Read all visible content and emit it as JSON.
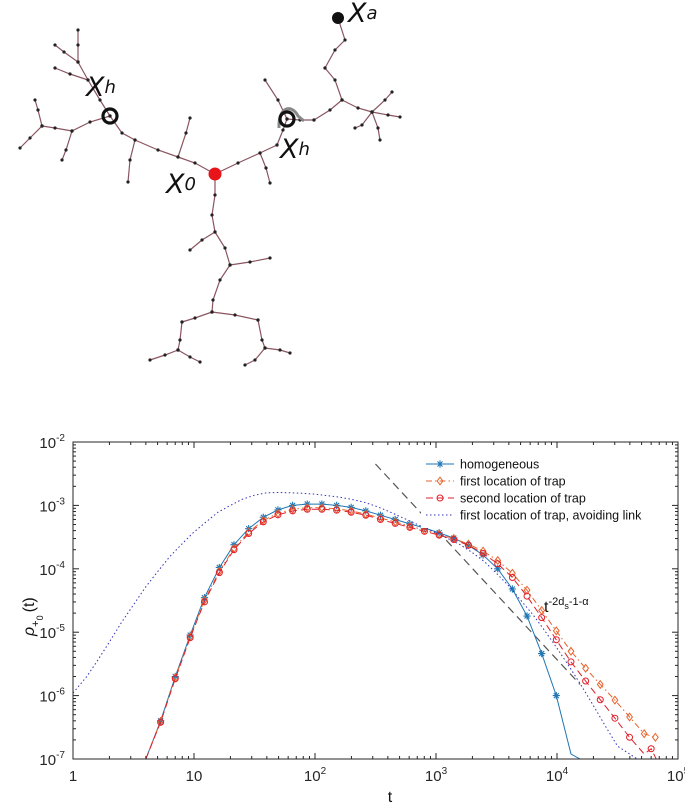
{
  "tree": {
    "labels": {
      "x_a": "X",
      "x_a_sub": "a",
      "x_h": "X",
      "x_h_sub": "h",
      "x_0": "X",
      "x_0_sub": "0"
    },
    "colors": {
      "edge": "#8a5560",
      "node": "#222222",
      "origin": "#e8141a",
      "target": "#111111",
      "trap_ring": "#111111",
      "avoid_arc": "#888888"
    }
  },
  "chart_data": {
    "type": "line",
    "x_scale": "log",
    "y_scale": "log",
    "xlim": [
      1,
      100000
    ],
    "ylim": [
      1e-07,
      0.01
    ],
    "x_ticks": [
      {
        "value": 1,
        "base": "1",
        "exp": ""
      },
      {
        "value": 10,
        "base": "10",
        "exp": ""
      },
      {
        "value": 100,
        "base": "10",
        "exp": "2"
      },
      {
        "value": 1000,
        "base": "10",
        "exp": "3"
      },
      {
        "value": 10000,
        "base": "10",
        "exp": "4"
      },
      {
        "value": 100000,
        "base": "10",
        "exp": "5"
      }
    ],
    "y_ticks": [
      {
        "value": 1e-07,
        "base": "10",
        "exp": "-7"
      },
      {
        "value": 1e-06,
        "base": "10",
        "exp": "-6"
      },
      {
        "value": 1e-05,
        "base": "10",
        "exp": "-5"
      },
      {
        "value": 0.0001,
        "base": "10",
        "exp": "-4"
      },
      {
        "value": 0.001,
        "base": "10",
        "exp": "-3"
      },
      {
        "value": 0.01,
        "base": "10",
        "exp": "-2"
      }
    ],
    "xlabel": "t",
    "ylabel": {
      "rho": "ρ",
      "sub": "+",
      "subsub": "0",
      "tail": "(t)"
    },
    "grid": false,
    "legend_position": "top-right",
    "annotation": {
      "base": "t",
      "exp": "-2d",
      "exp_sub": "s",
      "exp_tail": "-1-α"
    },
    "series": [
      {
        "name": "homogeneous",
        "color": "#1f77b4",
        "dash": "",
        "marker": "star",
        "x": [
          4,
          5.3,
          7.0,
          9.3,
          12.2,
          16.2,
          21.4,
          28.3,
          37.4,
          49.4,
          65.3,
          86.3,
          114,
          151,
          199,
          263,
          348,
          460,
          608,
          803,
          1062,
          1403,
          1854,
          2450,
          3237,
          4278,
          5653,
          7469,
          9870,
          13043,
          15500
        ],
        "y": [
          1e-07,
          4e-07,
          2e-06,
          9e-06,
          3.5e-05,
          0.000105,
          0.00024,
          0.00043,
          0.00065,
          0.00085,
          0.001,
          0.00105,
          0.00105,
          0.001,
          0.00093,
          0.00082,
          0.0007,
          0.0006,
          0.00051,
          0.00044,
          0.00037,
          0.000305,
          0.000235,
          0.000165,
          0.0001,
          4.8e-05,
          1.8e-05,
          4.6e-06,
          1e-06,
          1.2e-07,
          1e-07
        ],
        "marker_x": [
          5.3,
          7.0,
          9.3,
          12.2,
          16.2,
          21.4,
          28.3,
          37.4,
          49.4,
          65.3,
          86.3,
          114,
          151,
          199,
          263,
          348,
          460,
          608,
          803,
          1062,
          1403,
          1854,
          2450,
          3237,
          4278,
          5653,
          7469,
          9870
        ],
        "marker_y": [
          4e-07,
          2e-06,
          9e-06,
          3.5e-05,
          0.000105,
          0.00024,
          0.00043,
          0.00065,
          0.00085,
          0.001,
          0.00105,
          0.00105,
          0.001,
          0.00093,
          0.00082,
          0.0007,
          0.0006,
          0.00051,
          0.00044,
          0.00037,
          0.000305,
          0.000235,
          0.000165,
          0.0001,
          4.8e-05,
          1.8e-05,
          4.6e-06,
          1e-06
        ]
      },
      {
        "name": "first location of trap",
        "color": "#e8622a",
        "dash": "6,3,1.5,3",
        "marker": "diamond",
        "x": [
          4,
          5.3,
          7.0,
          9.3,
          12.2,
          16.2,
          21.4,
          28.3,
          37.4,
          49.4,
          65.3,
          86.3,
          114,
          151,
          199,
          263,
          348,
          460,
          608,
          803,
          1062,
          1403,
          1854,
          2450,
          3237,
          4278,
          5653,
          7469,
          9870,
          13043,
          17236,
          22778,
          30100,
          39780,
          52570,
          65000
        ],
        "y": [
          1e-07,
          3.9e-07,
          1.9e-06,
          8.5e-06,
          3.2e-05,
          9.2e-05,
          0.00021,
          0.00038,
          0.00058,
          0.00075,
          0.00087,
          0.00092,
          0.00092,
          0.00088,
          0.00082,
          0.00073,
          0.00063,
          0.00055,
          0.00047,
          0.00041,
          0.00035,
          0.0003,
          0.000245,
          0.00019,
          0.000135,
          8.5e-05,
          4.6e-05,
          2.2e-05,
          1.05e-05,
          5e-06,
          2.7e-06,
          1.5e-06,
          8.5e-07,
          4.6e-07,
          2.5e-07,
          2.2e-07
        ],
        "marker_x": [
          5.3,
          7.0,
          9.3,
          12.2,
          16.2,
          21.4,
          28.3,
          37.4,
          49.4,
          65.3,
          86.3,
          114,
          151,
          199,
          263,
          348,
          460,
          608,
          803,
          1062,
          1403,
          1854,
          2450,
          3237,
          4278,
          5653,
          7469,
          9870,
          13043,
          17236,
          22778,
          30100,
          39780,
          52570,
          65000
        ],
        "marker_y": [
          3.9e-07,
          1.9e-06,
          8.5e-06,
          3.2e-05,
          9.2e-05,
          0.00021,
          0.00038,
          0.00058,
          0.00075,
          0.00087,
          0.00092,
          0.00092,
          0.00088,
          0.00082,
          0.00073,
          0.00063,
          0.00055,
          0.00047,
          0.00041,
          0.00035,
          0.0003,
          0.000245,
          0.00019,
          0.000135,
          8.5e-05,
          4.6e-05,
          2.2e-05,
          1.05e-05,
          5e-06,
          2.7e-06,
          1.5e-06,
          8.5e-07,
          4.6e-07,
          2.5e-07,
          2.2e-07
        ]
      },
      {
        "name": "second location of trap",
        "color": "#e0202a",
        "dash": "7,4",
        "marker": "circle",
        "x": [
          4,
          5.3,
          7.0,
          9.3,
          12.2,
          16.2,
          21.4,
          28.3,
          37.4,
          49.4,
          65.3,
          86.3,
          114,
          151,
          199,
          263,
          348,
          460,
          608,
          803,
          1062,
          1403,
          1854,
          2450,
          3237,
          4278,
          5653,
          7469,
          9870,
          13043,
          17236,
          22778,
          30100,
          39780,
          52570,
          60000,
          66000
        ],
        "y": [
          1e-07,
          3.8e-07,
          1.85e-06,
          8.2e-06,
          3e-05,
          8.7e-05,
          0.0002,
          0.00036,
          0.00055,
          0.00071,
          0.00082,
          0.00087,
          0.00087,
          0.00084,
          0.00078,
          0.0007,
          0.0006,
          0.00052,
          0.00045,
          0.00039,
          0.00034,
          0.00029,
          0.000235,
          0.000175,
          0.00012,
          7.3e-05,
          3.7e-05,
          1.7e-05,
          7.6e-06,
          3.4e-06,
          1.7e-06,
          8.6e-07,
          4.4e-07,
          2.2e-07,
          1.2e-07,
          1.45e-07,
          1e-07
        ],
        "marker_x": [
          5.3,
          7.0,
          9.3,
          12.2,
          16.2,
          21.4,
          28.3,
          37.4,
          49.4,
          65.3,
          86.3,
          114,
          151,
          199,
          263,
          348,
          460,
          608,
          803,
          1062,
          1403,
          1854,
          2450,
          3237,
          4278,
          5653,
          7469,
          9870,
          13043,
          17236,
          22778,
          30100,
          39780,
          60000
        ],
        "marker_y": [
          3.8e-07,
          1.85e-06,
          8.2e-06,
          3e-05,
          8.7e-05,
          0.0002,
          0.00036,
          0.00055,
          0.00071,
          0.00082,
          0.00087,
          0.00087,
          0.00084,
          0.00078,
          0.0007,
          0.0006,
          0.00052,
          0.00045,
          0.00039,
          0.00034,
          0.00029,
          0.000235,
          0.000175,
          0.00012,
          7.3e-05,
          3.7e-05,
          1.7e-05,
          7.6e-06,
          3.4e-06,
          1.7e-06,
          8.6e-07,
          4.4e-07,
          2.2e-07,
          1.45e-07
        ]
      },
      {
        "name": "first location of trap, avoiding link",
        "color": "#3333bb",
        "dash": "1.5,2.5",
        "marker": "none",
        "x": [
          1,
          1.3,
          1.6,
          2,
          2.5,
          3.2,
          4,
          5,
          6.3,
          8,
          10,
          12.6,
          15.8,
          20,
          25,
          31.6,
          40,
          50,
          63,
          79,
          100,
          126,
          158,
          200,
          251,
          316,
          398,
          501,
          631,
          794,
          1000,
          1259,
          1585,
          1995,
          2512,
          3162,
          3981,
          5012,
          6310,
          7943,
          10000,
          12589,
          15849,
          19953,
          25119,
          31623,
          39811,
          46000
        ],
        "y": [
          1.1e-06,
          2e-06,
          3.6e-06,
          7e-06,
          1.4e-05,
          2.8e-05,
          5.2e-05,
          9e-05,
          0.000155,
          0.00025,
          0.00038,
          0.00055,
          0.00078,
          0.001,
          0.00125,
          0.00145,
          0.00158,
          0.0016,
          0.00158,
          0.00155,
          0.0015,
          0.00143,
          0.00135,
          0.00125,
          0.00113,
          0.00098,
          0.00082,
          0.00067,
          0.00055,
          0.00045,
          0.00037,
          0.0003,
          0.00024,
          0.00018,
          0.00013,
          8.5e-05,
          5.4e-05,
          3.2e-05,
          1.9e-05,
          1.05e-05,
          5.6e-06,
          2.9e-06,
          1.45e-06,
          7e-07,
          3.3e-07,
          1.6e-07,
          1.2e-07,
          1e-07
        ]
      }
    ],
    "reference_line": {
      "color": "#555555",
      "dash": "8,5",
      "x": [
        316,
        15500
      ],
      "y": [
        0.0045,
        1.5e-06
      ]
    }
  }
}
